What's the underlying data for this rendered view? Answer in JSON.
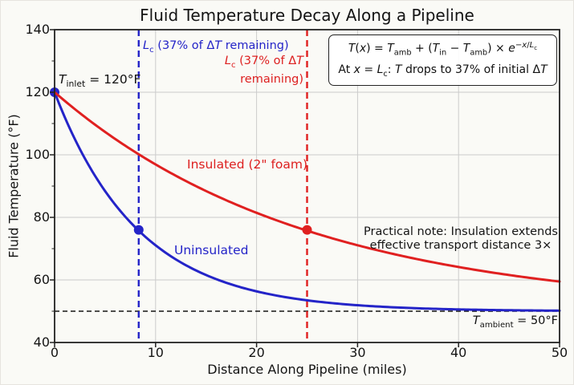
{
  "chart_data": {
    "type": "line",
    "title": "Fluid Temperature Decay Along a Pipeline",
    "xlabel": "Distance Along Pipeline (miles)",
    "ylabel": "Fluid Temperature (°F)",
    "xlim": [
      0,
      50
    ],
    "ylim": [
      40,
      140
    ],
    "x_ticks": [
      0,
      10,
      20,
      30,
      40,
      50
    ],
    "y_ticks": [
      40,
      60,
      80,
      100,
      120,
      140
    ],
    "y_minor_ticks": [
      50,
      70,
      90,
      110,
      130
    ],
    "grid": true,
    "model": {
      "T_ambient_F": 50,
      "T_inlet_F": 120,
      "formula": "T(x) = T_amb + (T_in - T_amb) * exp(-x/L_c)"
    },
    "series": [
      {
        "name": "Uninsulated",
        "color": "#2424c8",
        "L_c_miles": 8.33,
        "x": [
          0,
          2.5,
          5,
          7.5,
          10,
          12.5,
          15,
          17.5,
          20,
          22.5,
          25,
          27.5,
          30,
          32.5,
          35,
          37.5,
          40,
          42.5,
          45,
          47.5,
          50
        ],
        "values": [
          120,
          101.9,
          88.4,
          78.5,
          71.1,
          65.6,
          61.6,
          58.6,
          56.3,
          54.7,
          53.5,
          52.6,
          51.9,
          51.4,
          51.1,
          50.8,
          50.6,
          50.4,
          50.3,
          50.2,
          50.2
        ],
        "markers": [
          [
            0,
            120
          ],
          [
            8.33,
            76
          ]
        ]
      },
      {
        "name": "Insulated (2\" foam)",
        "color": "#e02020",
        "L_c_miles": 25,
        "x": [
          0,
          2.5,
          5,
          7.5,
          10,
          12.5,
          15,
          17.5,
          20,
          22.5,
          25,
          27.5,
          30,
          32.5,
          35,
          37.5,
          40,
          42.5,
          45,
          47.5,
          50
        ],
        "values": [
          120,
          113.3,
          107.3,
          101.9,
          96.9,
          92.5,
          88.4,
          84.8,
          81.5,
          78.5,
          75.7,
          73.3,
          71.1,
          69.1,
          67.3,
          65.6,
          64.1,
          62.8,
          61.6,
          60.5,
          59.5
        ],
        "markers": [
          [
            25,
            76
          ]
        ]
      }
    ],
    "reference_lines": {
      "ambient": {
        "y": 50,
        "color": "#141414",
        "style": "dashed"
      },
      "lc_uninsulated": {
        "x": 8.33,
        "color": "#2424c8",
        "style": "dashed"
      },
      "lc_insulated": {
        "x": 25,
        "color": "#e02020",
        "style": "dashed"
      }
    },
    "legend_position": "inline-curve-labels"
  },
  "annotations": {
    "formula_line1_html": "<i>T</i>(<i>x</i>) = <i>T</i><sub>amb</sub> + (<i>T</i><sub>in</sub> − <i>T</i><sub>amb</sub>) × <i>e</i><sup>−<i>x</i>/<i>L</i><sub>c</sub></sup>",
    "formula_line2_html": "At <i>x</i> = <i>L</i><sub>c</sub>: <i>T</i> drops to 37% of initial Δ<i>T</i>",
    "inlet_html": "<i>T</i><sub>inlet</sub> = 120°F",
    "lc_blue_html": "<i>L</i><sub>c</sub> (37% of Δ<i>T</i> remaining)",
    "lc_red_html": "<i>L</i><sub>c</sub> (37% of Δ<i>T</i><br>remaining)",
    "insulated_label": "Insulated (2\" foam)",
    "uninsulated_label": "Uninsulated",
    "note_line1": "Practical note: Insulation extends",
    "note_line2": "effective transport distance 3×",
    "ambient_html": "<i>T</i><sub>ambient</sub> = 50°F"
  },
  "colors": {
    "uninsulated_blue": "#2424c8",
    "insulated_red": "#e02020",
    "grid": "#cbcbcb",
    "spine": "#222222",
    "background": "#fafaf6"
  }
}
